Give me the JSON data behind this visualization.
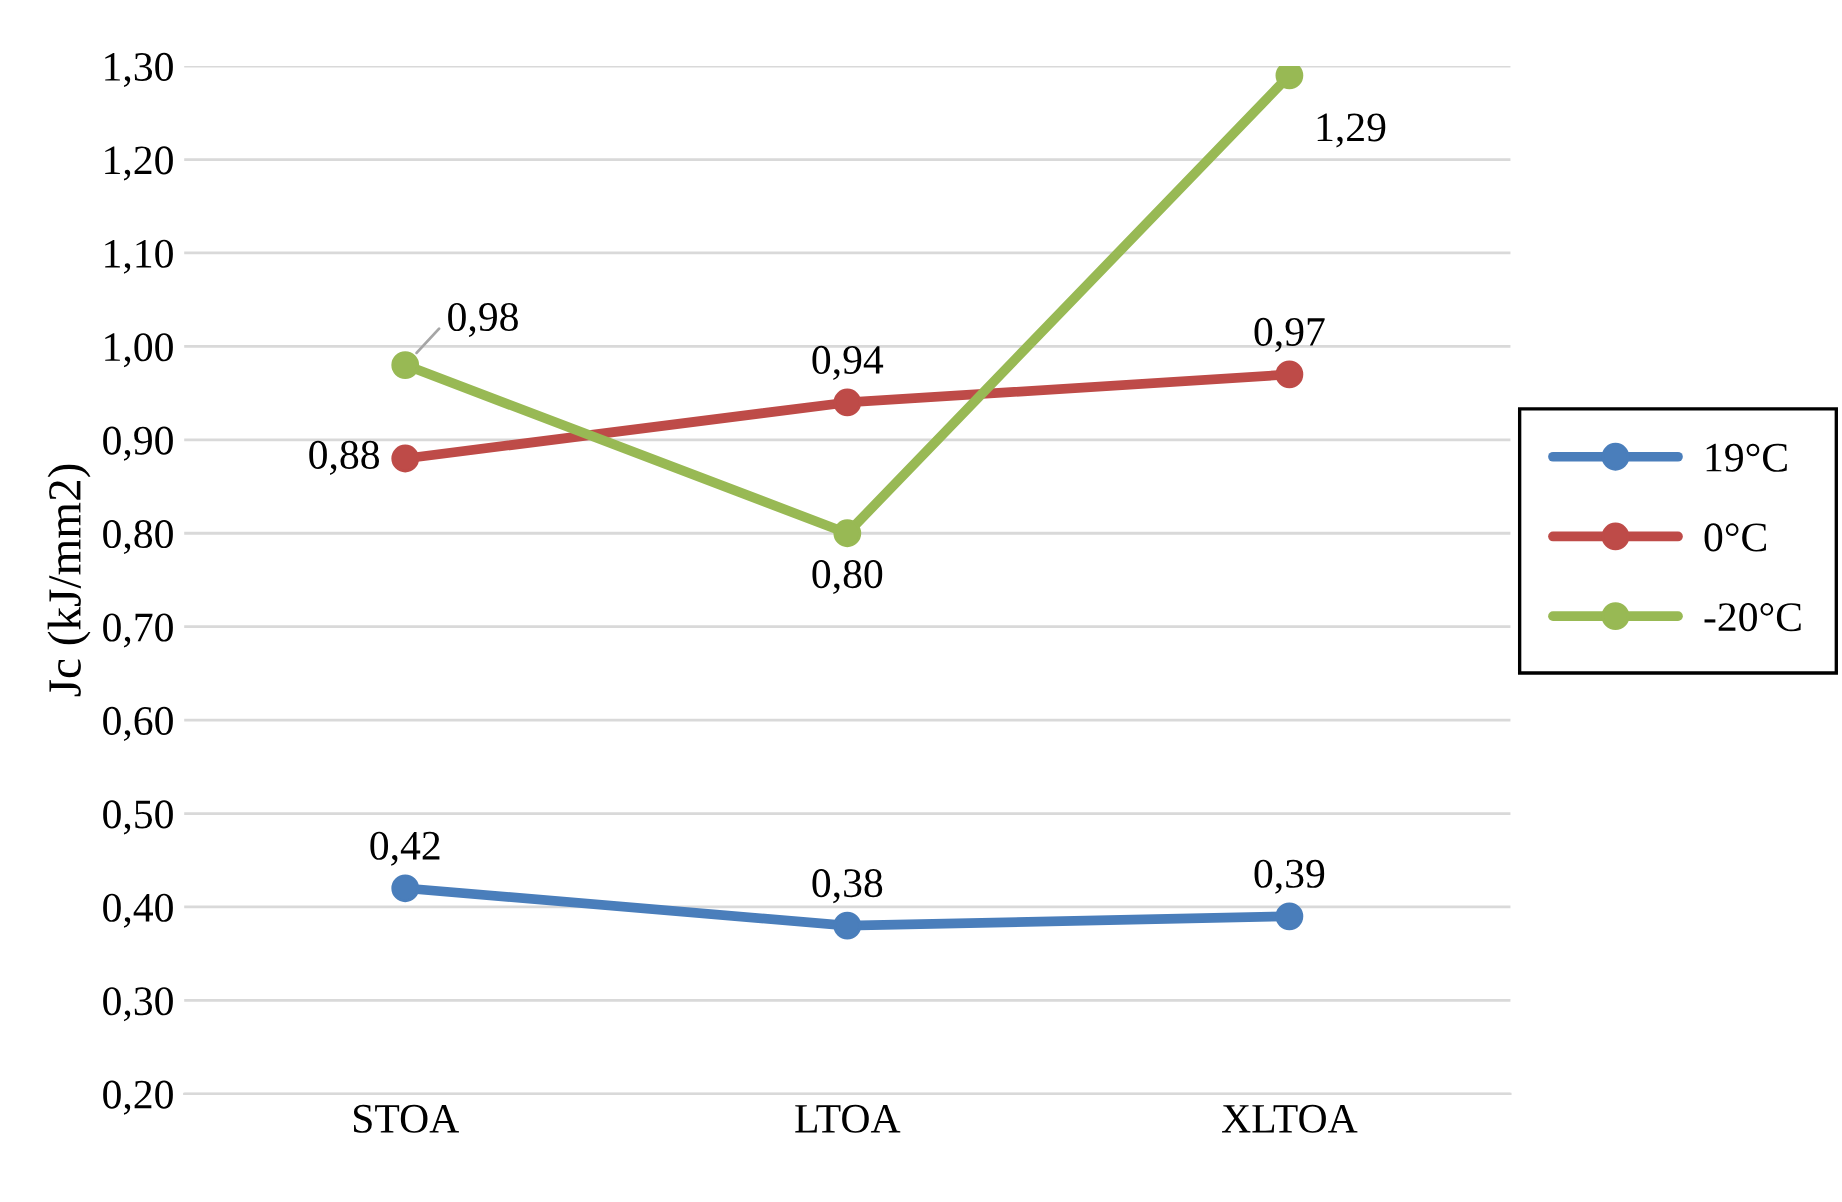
{
  "chart_data": {
    "type": "line",
    "ylabel": "Jc (kJ/mm2)",
    "categories": [
      "STOA",
      "LTOA",
      "XLTOA"
    ],
    "series": [
      {
        "name": "19°C",
        "color": "#4a7ebb",
        "values": [
          0.42,
          0.38,
          0.39
        ],
        "value_labels": [
          "0,42",
          "0,38",
          "0,39"
        ]
      },
      {
        "name": "0°C",
        "color": "#be4b48",
        "values": [
          0.88,
          0.94,
          0.97
        ],
        "value_labels": [
          "0,88",
          "0,94",
          "0,97"
        ]
      },
      {
        "name": "-20°C",
        "color": "#98b954",
        "values": [
          0.98,
          0.8,
          1.29
        ],
        "value_labels": [
          "0,98",
          "0,80",
          "1,29"
        ]
      }
    ],
    "ylim": [
      0.2,
      1.3
    ],
    "yticks": [
      {
        "value": 0.2,
        "label": "0,20"
      },
      {
        "value": 0.3,
        "label": "0,30"
      },
      {
        "value": 0.4,
        "label": "0,40"
      },
      {
        "value": 0.5,
        "label": "0,50"
      },
      {
        "value": 0.6,
        "label": "0,60"
      },
      {
        "value": 0.7,
        "label": "0,70"
      },
      {
        "value": 0.8,
        "label": "0,80"
      },
      {
        "value": 0.9,
        "label": "0,90"
      },
      {
        "value": 1.0,
        "label": "1,00"
      },
      {
        "value": 1.1,
        "label": "1,10"
      },
      {
        "value": 1.2,
        "label": "1,20"
      },
      {
        "value": 1.3,
        "label": "1,30"
      }
    ],
    "grid": "y",
    "legend": "right",
    "marker": "circle",
    "line_style": "solid"
  }
}
